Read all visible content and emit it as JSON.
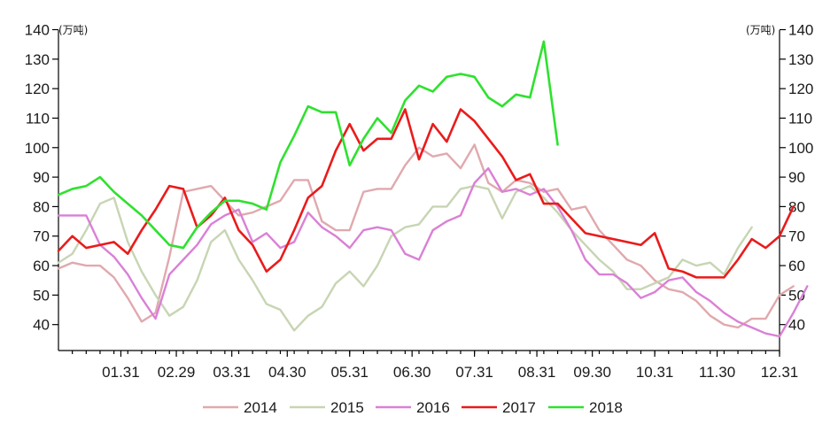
{
  "chart_data": {
    "type": "line",
    "y_unit_left": "(万吨)",
    "y_unit_right": "(万吨)",
    "ylim": [
      30,
      140
    ],
    "yticks": [
      40,
      50,
      60,
      70,
      80,
      90,
      100,
      110,
      120,
      130,
      140
    ],
    "xlim": [
      0,
      52
    ],
    "x_tick_labels": [
      "01.31",
      "02.29",
      "03.31",
      "04.30",
      "05.31",
      "06.30",
      "07.31",
      "08.31",
      "09.30",
      "10.31",
      "11.30",
      "12.31"
    ],
    "x_tick_weeks": [
      4.5,
      8.5,
      12.5,
      16.5,
      21,
      25.5,
      30,
      34.5,
      38.5,
      43,
      47.5,
      52
    ],
    "legend_position": "bottom",
    "grid": false,
    "series": [
      {
        "name": "2014",
        "color": "#e0a9ae",
        "width": 2.4,
        "values": [
          59,
          61,
          60,
          60,
          56,
          49,
          41,
          44,
          63,
          85,
          86,
          87,
          82,
          77,
          78,
          80,
          82,
          89,
          89,
          75,
          72,
          72,
          85,
          86,
          86,
          94,
          100,
          97,
          98,
          93,
          101,
          88,
          85,
          89,
          88,
          85,
          86,
          79,
          80,
          72,
          67,
          62,
          60,
          55,
          52,
          51,
          48,
          43,
          40,
          39,
          42,
          42,
          50,
          53
        ]
      },
      {
        "name": "2015",
        "color": "#c7d5b3",
        "width": 2.4,
        "values": [
          61,
          64,
          72,
          81,
          83,
          68,
          58,
          50,
          43,
          46,
          55,
          68,
          72,
          62,
          55,
          47,
          45,
          38,
          43,
          46,
          54,
          58,
          53,
          60,
          70,
          73,
          74,
          80,
          80,
          86,
          87,
          86,
          76,
          85,
          87,
          83,
          78,
          72,
          67,
          62,
          58,
          52,
          52,
          54,
          56,
          62,
          60,
          61,
          57,
          66,
          73
        ]
      },
      {
        "name": "2016",
        "color": "#da80d6",
        "width": 2.4,
        "values": [
          77,
          77,
          77,
          67,
          63,
          57,
          49,
          42,
          57,
          62,
          67,
          74,
          77,
          79,
          68,
          71,
          66,
          68,
          78,
          73,
          70,
          66,
          72,
          73,
          72,
          64,
          62,
          72,
          75,
          77,
          88,
          93,
          85,
          86,
          84,
          86,
          80,
          72,
          62,
          57,
          57,
          54,
          49,
          51,
          55,
          56,
          51,
          48,
          44,
          41,
          39,
          37,
          36,
          44,
          53
        ]
      },
      {
        "name": "2017",
        "color": "#ea1b1b",
        "width": 2.6,
        "values": [
          65,
          70,
          66,
          67,
          68,
          64,
          72,
          79,
          87,
          86,
          73,
          77,
          83,
          72,
          67,
          58,
          62,
          72,
          83,
          87,
          99,
          108,
          99,
          103,
          103,
          113,
          96,
          108,
          102,
          113,
          109,
          103,
          97,
          89,
          91,
          81,
          81,
          76,
          71,
          70,
          69,
          68,
          67,
          71,
          59,
          58,
          56,
          56,
          56,
          62,
          69,
          66,
          70,
          80
        ]
      },
      {
        "name": "2018",
        "color": "#2fe12f",
        "width": 2.6,
        "values": [
          84,
          86,
          87,
          90,
          85,
          81,
          77,
          72,
          67,
          66,
          73,
          78,
          82,
          82,
          81,
          79,
          95,
          104,
          114,
          112,
          112,
          94,
          103,
          110,
          105,
          116,
          121,
          119,
          124,
          125,
          124,
          117,
          114,
          118,
          117,
          136,
          101
        ]
      }
    ]
  }
}
